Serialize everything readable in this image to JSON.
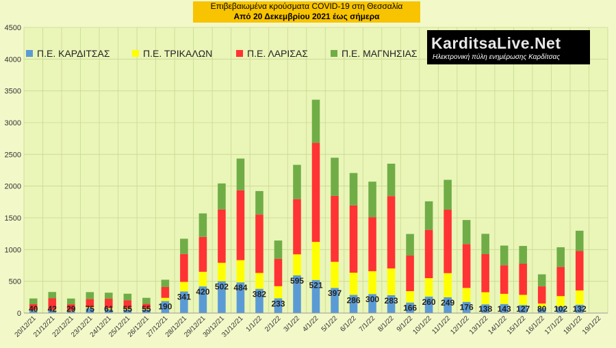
{
  "header": {
    "title": "Επιβεβαιωμένα κρούσματα COVID-19 στη Θεσσαλία",
    "subtitle": "Από 20 Δεκεμβρίου 2021 έως σήμερα"
  },
  "logo": {
    "brand": "KarditsaLive.Net",
    "tagline": "Ηλεκτρονική πύλη ενημέρωσης Καρδίτσας"
  },
  "colors": {
    "karditsa": "#5b9bd5",
    "trikala": "#ffff00",
    "larisa": "#ff3333",
    "magnisia": "#70ad47"
  },
  "chart_data": {
    "type": "bar",
    "stacked": true,
    "categories": [
      "20/12/21",
      "21/12/21",
      "22/12/21",
      "23/12/21",
      "24/12/21",
      "25/12/21",
      "26/12/21",
      "27/12/21",
      "28/12/21",
      "29/12/21",
      "30/12/21",
      "31/12/21",
      "1/1/22",
      "2/1/22",
      "3/1/22",
      "4/1/22",
      "5/1/22",
      "6/1/22",
      "7/1/22",
      "8/1/22",
      "9/1/22",
      "10/1/22",
      "11/1/22",
      "12/1/22",
      "13/1/22",
      "14/1/22",
      "15/1/22",
      "16/1/22",
      "17/1/22",
      "18/1/22",
      "19/1/22"
    ],
    "series": [
      {
        "name": "Π.Ε. ΚΑΡΔΙΤΣΑΣ",
        "color": "#5b9bd5",
        "values": [
          40,
          42,
          29,
          75,
          61,
          55,
          55,
          190,
          341,
          420,
          502,
          484,
          382,
          233,
          595,
          521,
          397,
          286,
          300,
          283,
          166,
          260,
          249,
          176,
          138,
          143,
          127,
          80,
          102,
          132,
          null
        ]
      },
      {
        "name": "Π.Ε. ΤΡΙΚΑΛΩΝ",
        "color": "#ffff00",
        "values": [
          10,
          10,
          10,
          15,
          15,
          15,
          10,
          50,
          150,
          230,
          290,
          350,
          250,
          190,
          330,
          600,
          410,
          350,
          360,
          420,
          180,
          290,
          380,
          220,
          190,
          160,
          160,
          70,
          165,
          225,
          null
        ]
      },
      {
        "name": "Π.Ε. ΛΑΡΙΣΑΣ",
        "color": "#ff3333",
        "values": [
          90,
          180,
          100,
          130,
          150,
          130,
          80,
          170,
          440,
          550,
          840,
          1100,
          920,
          430,
          870,
          1560,
          1040,
          1060,
          850,
          1140,
          560,
          760,
          1000,
          690,
          600,
          450,
          490,
          270,
          460,
          620,
          null
        ]
      },
      {
        "name": "Π.Ε. ΜΑΓΝΗΣΙΑΣ",
        "color": "#70ad47",
        "values": [
          90,
          100,
          90,
          110,
          95,
          105,
          95,
          115,
          240,
          370,
          410,
          500,
          370,
          290,
          540,
          680,
          600,
          510,
          560,
          510,
          340,
          450,
          470,
          380,
          320,
          310,
          280,
          190,
          310,
          320,
          null
        ]
      }
    ],
    "data_labels": [
      "40",
      "42",
      "29",
      "75",
      "61",
      "55",
      "55",
      "190",
      "341",
      "420",
      "502",
      "484",
      "382",
      "233",
      "595",
      "521",
      "397",
      "286",
      "300",
      "283",
      "166",
      "260",
      "249",
      "176",
      "138",
      "143",
      "127",
      "80",
      "102",
      "132"
    ],
    "ylim": [
      0,
      4500
    ],
    "yticks": [
      "0",
      "500",
      "1000",
      "1500",
      "2000",
      "2500",
      "3000",
      "3500",
      "4000",
      "4500"
    ],
    "grid": true,
    "legend_position": "top-left"
  }
}
